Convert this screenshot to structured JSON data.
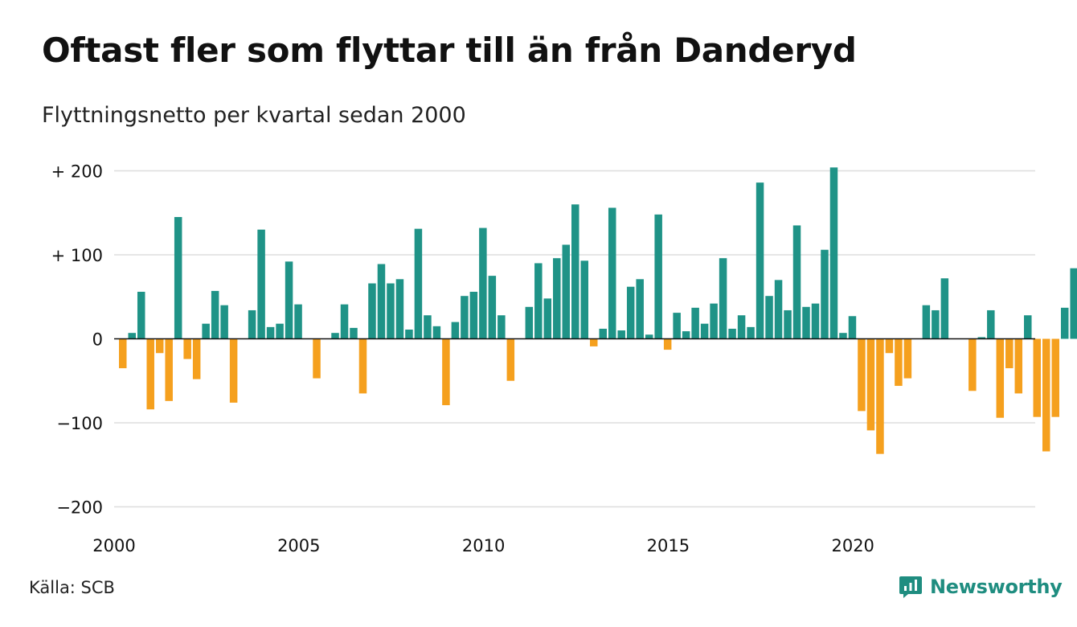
{
  "header": {
    "title": "Oftast fler som flyttar till än från Danderyd",
    "subtitle": "Flyttningsnetto per kvartal sedan 2000"
  },
  "footer": {
    "source": "Källa: SCB",
    "brand": "Newsworthy"
  },
  "colors": {
    "positive": "#1f9387",
    "negative": "#f5a01e",
    "brand": "#1f8d80",
    "grid": "#dddddd"
  },
  "chart_data": {
    "type": "bar",
    "x_start": "2000 Q1",
    "ylim": [
      -200,
      200
    ],
    "y_ticks": [
      {
        "value": 200,
        "label": "+ 200"
      },
      {
        "value": 100,
        "label": "+ 100"
      },
      {
        "value": 0,
        "label": "0"
      },
      {
        "value": -100,
        "label": "−100"
      },
      {
        "value": -200,
        "label": "−200"
      }
    ],
    "x_ticks": [
      "2000",
      "2005",
      "2010",
      "2015",
      "2020"
    ],
    "grid": true,
    "values": [
      -35,
      7,
      56,
      -84,
      -17,
      -74,
      145,
      -24,
      -48,
      18,
      57,
      40,
      -76,
      0,
      34,
      130,
      14,
      18,
      92,
      41,
      0,
      -47,
      0,
      7,
      41,
      13,
      -65,
      66,
      89,
      66,
      71,
      11,
      131,
      28,
      15,
      -79,
      20,
      51,
      56,
      132,
      75,
      28,
      -50,
      0,
      38,
      90,
      48,
      96,
      112,
      160,
      93,
      -9,
      12,
      156,
      10,
      62,
      71,
      5,
      148,
      -13,
      31,
      9,
      37,
      18,
      42,
      96,
      12,
      28,
      14,
      186,
      51,
      70,
      34,
      135,
      38,
      42,
      106,
      204,
      7,
      27,
      -86,
      -109,
      -137,
      -17,
      -56,
      -47,
      0,
      40,
      34,
      72,
      0,
      0,
      -62,
      2,
      34,
      -94,
      -35,
      -65,
      28,
      -93,
      -134,
      -93,
      37,
      84
    ]
  }
}
